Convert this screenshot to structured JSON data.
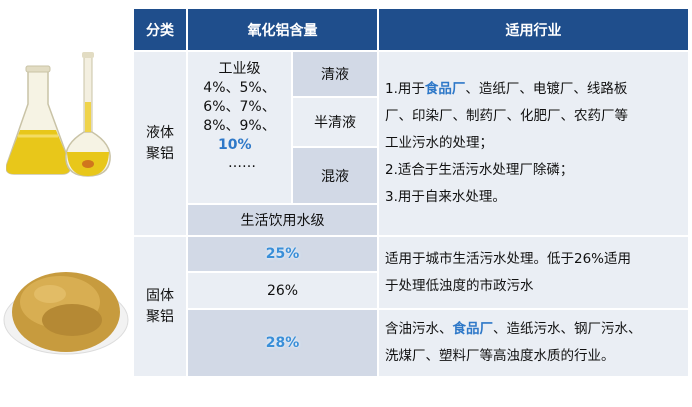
{
  "header": {
    "category": "分类",
    "alumina": "氧化铝含量",
    "application": "适用行业"
  },
  "liquid": {
    "name_line1": "液体",
    "name_line2": "聚铝",
    "industrial_grade": "工业级",
    "percents_line1": "4%、5%、",
    "percents_line2": "6%、7%、",
    "percents_line3": "8%、9%、",
    "percents_highlight": "10%",
    "percents_more": "……",
    "types": [
      "清液",
      "半清液",
      "混液"
    ],
    "drinking_grade": "生活饮用水级",
    "app_1a": "1.用于",
    "app_1_link": "食品厂",
    "app_1b": "、造纸厂、电镀厂、线路板",
    "app_1c": "厂、印染厂、制药厂、化肥厂、农药厂等",
    "app_1d": "工业污水的处理；",
    "app_2": "2.适合于生活污水处理厂除磷；",
    "app_3": "3.用于自来水处理。"
  },
  "solid": {
    "name_line1": "固体",
    "name_line2": "聚铝",
    "values": [
      "25%",
      "26%",
      "28%"
    ],
    "app_a_line1": "适用于城市生活污水处理。低于26%适用",
    "app_a_line2": "于处理低浊度的市政污水",
    "app_b_1": "含油污水、",
    "app_b_link": "食品厂",
    "app_b_2": "、造纸污水、钢厂污水、",
    "app_b_line2": "洗煤厂、塑料厂等高浊度水质的行业。"
  }
}
